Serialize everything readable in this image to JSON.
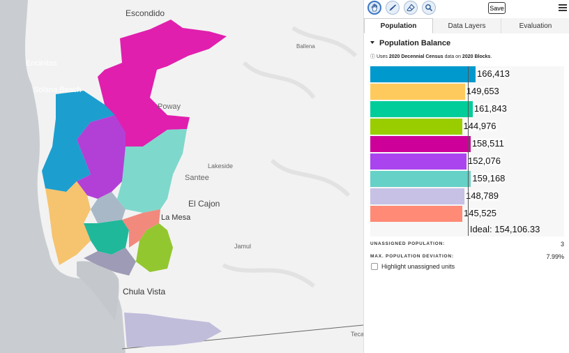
{
  "map": {
    "places": [
      {
        "name": "Escondido"
      },
      {
        "name": "Ballena"
      },
      {
        "name": "Encinitas"
      },
      {
        "name": "Solana Beach"
      },
      {
        "name": "Poway"
      },
      {
        "name": "Lakeside"
      },
      {
        "name": "Santee"
      },
      {
        "name": "El Cajon"
      },
      {
        "name": "La Mesa"
      },
      {
        "name": "Jamul"
      },
      {
        "name": "Chula Vista"
      },
      {
        "name": "Teca"
      }
    ]
  },
  "toolbar": {
    "tools": [
      "hand-pan-tool",
      "brush-tool",
      "eraser-tool",
      "inspect-tool"
    ],
    "active_tool": "hand-pan-tool",
    "save_label": "Save"
  },
  "tabs": [
    {
      "label": "Population",
      "active": true
    },
    {
      "label": "Data Layers",
      "active": false
    },
    {
      "label": "Evaluation",
      "active": false
    }
  ],
  "population": {
    "section_title": "Population Balance",
    "note_prefix": "ⓘ Uses ",
    "note_dataset": "2020 Decennial Census",
    "note_mid": " data on ",
    "note_units": "2020 Blocks",
    "note_suffix": "."
  },
  "chart_data": {
    "type": "bar",
    "orientation": "horizontal",
    "values": [
      166413,
      149653,
      161843,
      144976,
      158511,
      152076,
      159168,
      148789,
      145525
    ],
    "labels": [
      "166,413",
      "149,653",
      "161,843",
      "144,976",
      "158,511",
      "152,076",
      "159,168",
      "148,789",
      "145,525"
    ],
    "colors": [
      "#0099cd",
      "#ffca5d",
      "#00cd99",
      "#99cd00",
      "#cd0099",
      "#aa44ef",
      "#66d1c6",
      "#c6c1e5",
      "#ff8a76"
    ],
    "ideal_value": 154106.33,
    "ideal_label": "Ideal: 154,106.33",
    "xlim": [
      0,
      170000
    ]
  },
  "stats": {
    "unassigned_label": "UNASSIGNED POPULATION:",
    "unassigned_value": "3",
    "deviation_label": "MAX. POPULATION DEVIATION:",
    "deviation_value": "7.99%"
  },
  "highlight_label": "Highlight unassigned units"
}
